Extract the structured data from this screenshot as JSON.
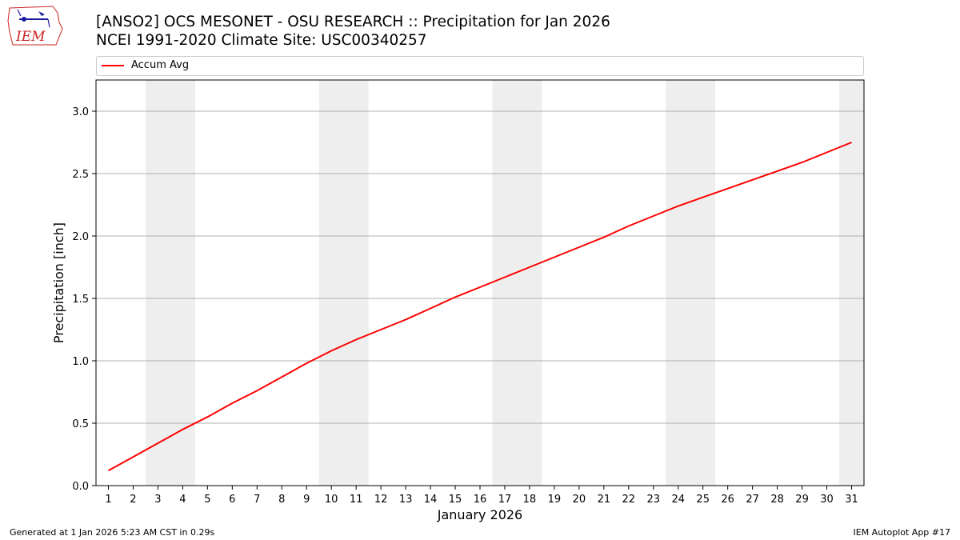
{
  "header": {
    "title": "[ANSO2] OCS MESONET - OSU RESEARCH :: Precipitation for Jan 2026",
    "subtitle": "NCEI 1991-2020 Climate Site: USC00340257",
    "logo_text": "IEM"
  },
  "footer": {
    "generated": "Generated at 1 Jan 2026 5:23 AM CST in 0.29s",
    "app": "IEM Autoplot App #17"
  },
  "colors": {
    "line": "#ff0000",
    "weekend_shade": "#eeeeee",
    "grid": "#b0b0b0",
    "logo": "#cc2222"
  },
  "chart_data": {
    "type": "line",
    "xlabel": "January 2026",
    "ylabel": "Precipitation [inch]",
    "ylim": [
      0,
      3.25
    ],
    "yticks": [
      "0.0",
      "0.5",
      "1.0",
      "1.5",
      "2.0",
      "2.5",
      "3.0"
    ],
    "ytick_values": [
      0,
      0.5,
      1.0,
      1.5,
      2.0,
      2.5,
      3.0
    ],
    "grid": "horizontal",
    "legend_placement": "top",
    "x": [
      1,
      2,
      3,
      4,
      5,
      6,
      7,
      8,
      9,
      10,
      11,
      12,
      13,
      14,
      15,
      16,
      17,
      18,
      19,
      20,
      21,
      22,
      23,
      24,
      25,
      26,
      27,
      28,
      29,
      30,
      31
    ],
    "shaded_days": [
      3,
      4,
      10,
      11,
      17,
      18,
      24,
      25,
      31
    ],
    "series": [
      {
        "name": "Accum Avg",
        "values": [
          0.12,
          0.23,
          0.34,
          0.45,
          0.55,
          0.66,
          0.76,
          0.87,
          0.98,
          1.08,
          1.17,
          1.25,
          1.33,
          1.42,
          1.51,
          1.59,
          1.67,
          1.75,
          1.83,
          1.91,
          1.99,
          2.08,
          2.16,
          2.24,
          2.31,
          2.38,
          2.45,
          2.52,
          2.59,
          2.67,
          2.75
        ]
      }
    ]
  }
}
